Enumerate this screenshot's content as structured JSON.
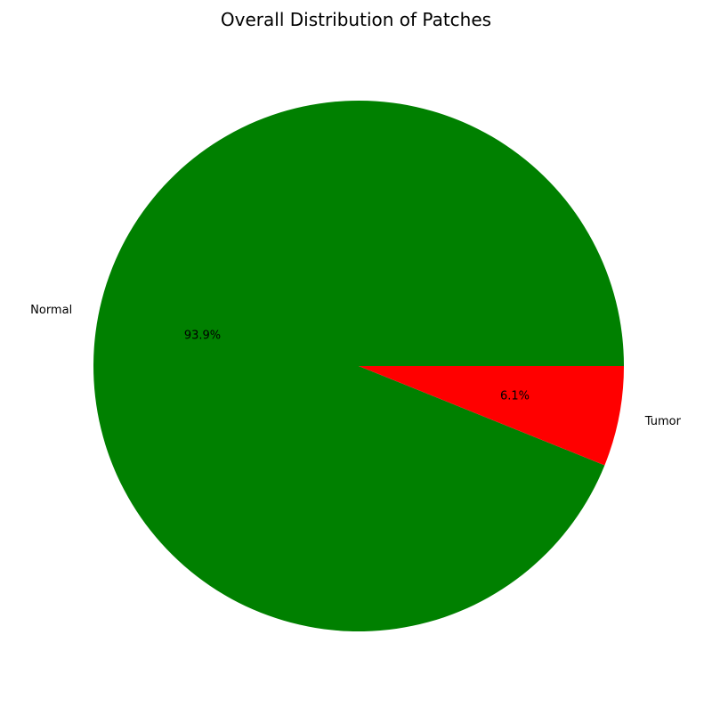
{
  "chart_data": {
    "type": "pie",
    "title": "Overall Distribution of Patches",
    "slices": [
      {
        "label": "Normal",
        "value": 93.9,
        "pct_label": "93.9%",
        "color": "#008000"
      },
      {
        "label": "Tumor",
        "value": 6.1,
        "pct_label": "6.1%",
        "color": "#ff0000"
      }
    ],
    "start_angle_deg": 0,
    "direction": "counterclockwise"
  }
}
